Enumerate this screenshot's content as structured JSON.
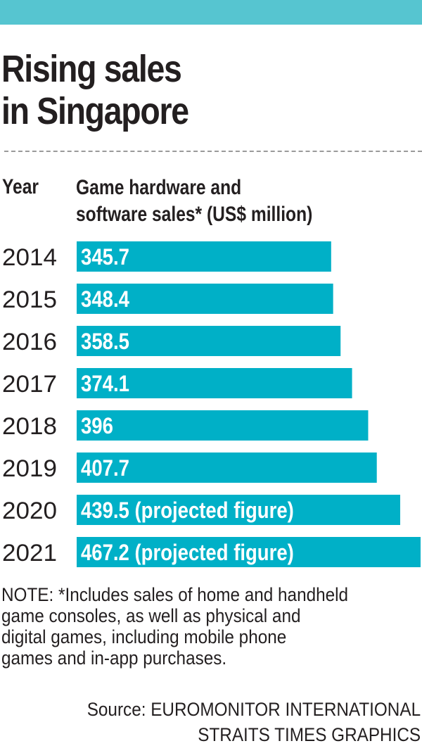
{
  "header": {
    "title_line1": "Rising sales",
    "title_line2": "in Singapore"
  },
  "columns": {
    "year": "Year",
    "sales_line1": "Game hardware and",
    "sales_line2": "software sales* (US$ million)"
  },
  "colors": {
    "bar": "#00b0c7",
    "top_band": "#56c5d0",
    "text": "#231f20"
  },
  "chart_data": {
    "type": "bar",
    "orientation": "horizontal",
    "title": "Rising sales in Singapore",
    "xlabel": "Game hardware and software sales* (US$ million)",
    "ylabel": "Year",
    "categories": [
      "2014",
      "2015",
      "2016",
      "2017",
      "2018",
      "2019",
      "2020",
      "2021"
    ],
    "values": [
      345.7,
      348.4,
      358.5,
      374.1,
      396,
      407.7,
      439.5,
      467.2
    ],
    "labels": [
      "345.7",
      "348.4",
      "358.5",
      "374.1",
      "396",
      "407.7",
      "439.5 (projected figure)",
      "467.2 (projected figure)"
    ],
    "projected": [
      false,
      false,
      false,
      false,
      false,
      false,
      true,
      true
    ],
    "xlim": [
      0,
      467.2
    ],
    "grid": false
  },
  "footer": {
    "note_line1": "NOTE: *Includes sales of home and handheld",
    "note_line2": "game consoles, as well as physical and",
    "note_line3": "digital games, including mobile phone",
    "note_line4": "games and in-app purchases.",
    "source_line1": "Source: EUROMONITOR INTERNATIONAL",
    "source_line2": "STRAITS TIMES GRAPHICS"
  }
}
